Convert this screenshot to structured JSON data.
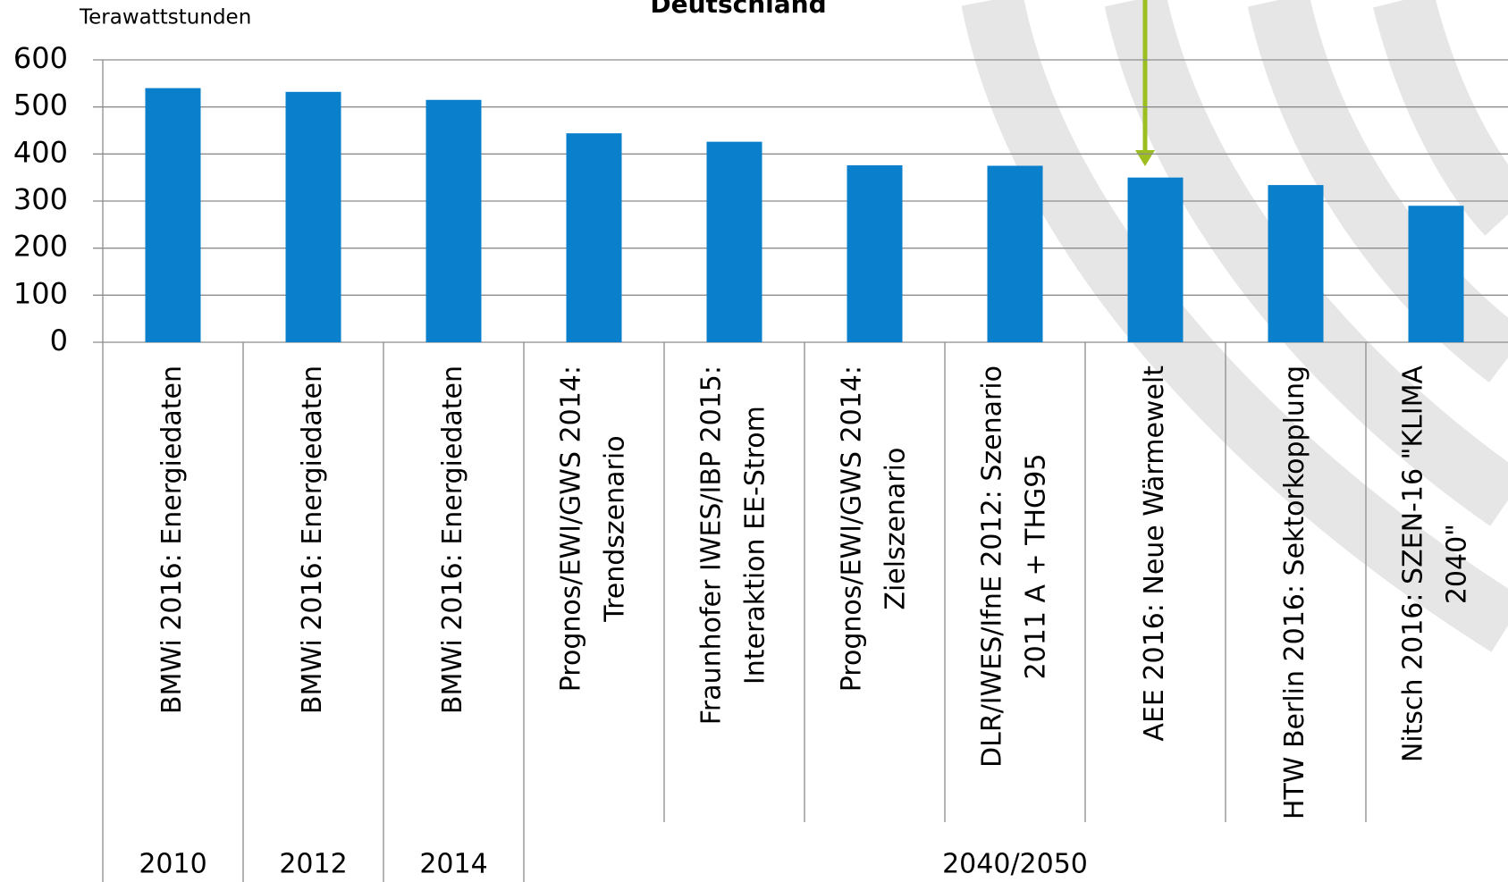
{
  "chart_data": {
    "type": "bar",
    "title": "Deutschland",
    "y_label": "Terawattstunden",
    "categories": [
      [
        "BMWi 2016: Energiedaten"
      ],
      [
        "BMWi 2016: Energiedaten"
      ],
      [
        "BMWi 2016: Energiedaten"
      ],
      [
        "Prognos/EWI/GWS 2014:",
        "Trendszenario"
      ],
      [
        "Fraunhofer IWES/IBP 2015:",
        "Interaktion EE-Strom"
      ],
      [
        "Prognos/EWI/GWS 2014:",
        "Zielszenario"
      ],
      [
        "DLR/IWES/IfnE 2012: Szenario",
        "2011 A + THG95"
      ],
      [
        "AEE 2016: Neue Wärmewelt"
      ],
      [
        "HTW Berlin 2016: Sektorkopplung"
      ],
      [
        "Nitsch 2016: SZEN-16 \"KLIMA",
        "2040\""
      ]
    ],
    "groups": [
      "2010",
      "2012",
      "2014",
      "2040/2050"
    ],
    "values": [
      540,
      532,
      515,
      444,
      426,
      376,
      375,
      350,
      334,
      290
    ],
    "color": "#0a7fcc",
    "ylim": [
      0,
      600
    ],
    "yticks": [
      0,
      100,
      200,
      300,
      400,
      500,
      600
    ],
    "grid": true
  }
}
